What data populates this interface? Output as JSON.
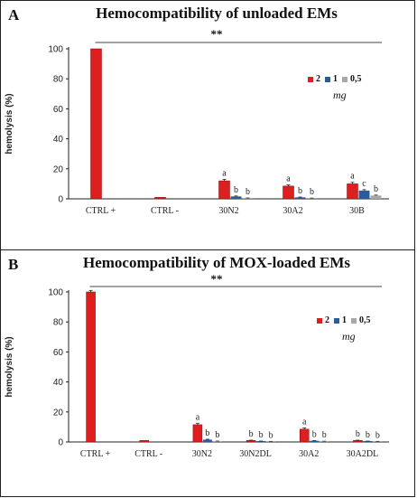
{
  "colors": {
    "series_2": "#dd1f1f",
    "series_1": "#2a5c9c",
    "series_05": "#a8a8a8"
  },
  "panels": [
    {
      "letter": "A",
      "title": "Hemocompatibility of unloaded EMs",
      "significance": "**"
    },
    {
      "letter": "B",
      "title": "Hemocompatibility of MOX-loaded EMs",
      "significance": "**"
    }
  ],
  "legend": {
    "items": [
      "2",
      "1",
      "0,5"
    ],
    "unit": "mg"
  },
  "chart_data": [
    {
      "type": "bar",
      "title": "Hemocompatibility of unloaded EMs",
      "ylabel": "hemolysis (%)",
      "ylim": [
        0,
        100
      ],
      "yticks": [
        "0",
        "20",
        "40",
        "60",
        "80",
        "100"
      ],
      "categories": [
        "CTRL +",
        "CTRL -",
        "30N2",
        "30A2",
        "30B"
      ],
      "series": [
        {
          "name": "2",
          "values": [
            100,
            1,
            12,
            8.5,
            10
          ],
          "errors": [
            0,
            0,
            1,
            0.8,
            1
          ]
        },
        {
          "name": "1",
          "values": [
            0,
            0,
            1.6,
            1,
            5.5
          ],
          "errors": [
            0,
            0,
            0.3,
            0.2,
            0.6
          ]
        },
        {
          "name": "0,5",
          "values": [
            0,
            0,
            0.5,
            0.4,
            2.2
          ],
          "errors": [
            0,
            0,
            0.1,
            0.1,
            0.3
          ]
        }
      ],
      "annotations": [
        [
          "",
          "",
          "",
          "",
          ""
        ],
        [
          "",
          "",
          "",
          "",
          ""
        ],
        [
          "a",
          "",
          "a",
          "a",
          "a"
        ],
        [
          "b",
          "",
          "b",
          "b",
          "c"
        ],
        [
          "b",
          "",
          "b",
          "b",
          "b"
        ]
      ],
      "letters": [
        {
          "cat": 2,
          "labels": [
            "a",
            "b",
            "b"
          ]
        },
        {
          "cat": 3,
          "labels": [
            "a",
            "b",
            "b"
          ]
        },
        {
          "cat": 4,
          "labels": [
            "a",
            "c",
            "b"
          ]
        }
      ],
      "bracket_from": "CTRL +"
    },
    {
      "type": "bar",
      "title": "Hemocompatibility of MOX-loaded EMs",
      "ylabel": "hemolysis (%)",
      "ylim": [
        0,
        100
      ],
      "yticks": [
        "0",
        "20",
        "40",
        "60",
        "80",
        "100"
      ],
      "categories": [
        "CTRL +",
        "CTRL -",
        "30N2",
        "30N2DL",
        "30A2",
        "30A2DL"
      ],
      "series": [
        {
          "name": "2",
          "values": [
            100,
            1,
            11.5,
            1,
            8.5,
            1
          ],
          "errors": [
            1,
            0,
            1,
            0.2,
            0.8,
            0.2
          ]
        },
        {
          "name": "1",
          "values": [
            0,
            0,
            1.5,
            0.5,
            0.8,
            0.5
          ],
          "errors": [
            0,
            0,
            0.3,
            0.1,
            0.2,
            0.1
          ]
        },
        {
          "name": "0,5",
          "values": [
            0,
            0,
            0.5,
            0.3,
            0.4,
            0.3
          ],
          "errors": [
            0,
            0,
            0.1,
            0.1,
            0.1,
            0.1
          ]
        }
      ],
      "letters": [
        {
          "cat": 2,
          "labels": [
            "a",
            "b",
            "b"
          ]
        },
        {
          "cat": 3,
          "labels": [
            "b",
            "b",
            "b"
          ]
        },
        {
          "cat": 4,
          "labels": [
            "a",
            "b",
            "b"
          ]
        },
        {
          "cat": 5,
          "labels": [
            "b",
            "b",
            "b"
          ]
        }
      ],
      "bracket_from": "CTRL +"
    }
  ]
}
